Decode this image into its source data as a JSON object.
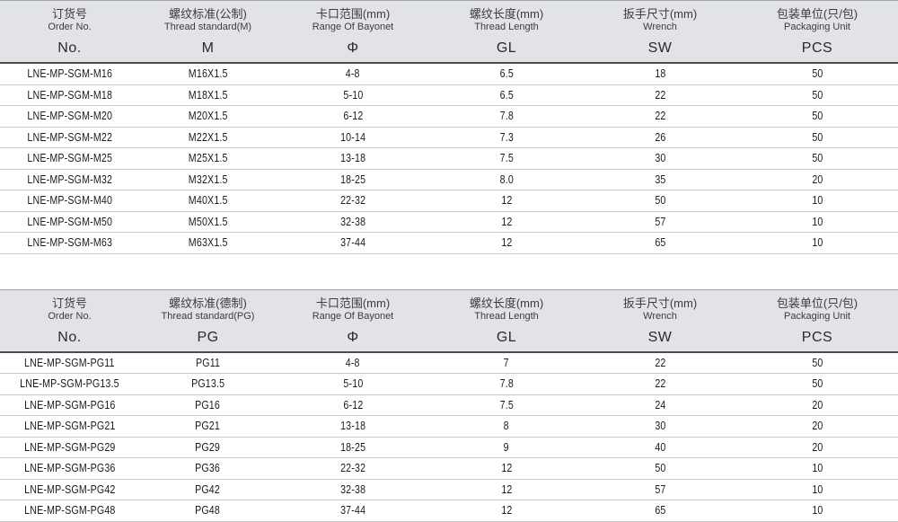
{
  "colors": {
    "header_bg": "#e1e3e6",
    "top_line": "#a0a4a8",
    "header_underline": "#4b4c4e",
    "row_line": "#c9cbcd",
    "text_dark": "#1c1c1c",
    "text_header": "#3c3c3c",
    "page_bg": "#ffffff"
  },
  "tables": [
    {
      "id": "metric",
      "columns": [
        {
          "zh": "订货号",
          "en": "Order No.",
          "abbr": "No."
        },
        {
          "zh": "螺纹标准(公制)",
          "en": "Thread standard(M)",
          "abbr": "M"
        },
        {
          "zh": "卡口范围(mm)",
          "en": "Range Of Bayonet",
          "abbr": "Φ"
        },
        {
          "zh": "螺纹长度(mm)",
          "en": "Thread Length",
          "abbr": "GL"
        },
        {
          "zh": "扳手尺寸(mm)",
          "en": "Wrench",
          "abbr": "SW"
        },
        {
          "zh": "包装单位(只/包)",
          "en": "Packaging Unit",
          "abbr": "PCS"
        }
      ],
      "rows": [
        [
          "LNE-MP-SGM-M16",
          "M16X1.5",
          "4-8",
          "6.5",
          "18",
          "50"
        ],
        [
          "LNE-MP-SGM-M18",
          "M18X1.5",
          "5-10",
          "6.5",
          "22",
          "50"
        ],
        [
          "LNE-MP-SGM-M20",
          "M20X1.5",
          "6-12",
          "7.8",
          "22",
          "50"
        ],
        [
          "LNE-MP-SGM-M22",
          "M22X1.5",
          "10-14",
          "7.3",
          "26",
          "50"
        ],
        [
          "LNE-MP-SGM-M25",
          "M25X1.5",
          "13-18",
          "7.5",
          "30",
          "50"
        ],
        [
          "LNE-MP-SGM-M32",
          "M32X1.5",
          "18-25",
          "8.0",
          "35",
          "20"
        ],
        [
          "LNE-MP-SGM-M40",
          "M40X1.5",
          "22-32",
          "12",
          "50",
          "10"
        ],
        [
          "LNE-MP-SGM-M50",
          "M50X1.5",
          "32-38",
          "12",
          "57",
          "10"
        ],
        [
          "LNE-MP-SGM-M63",
          "M63X1.5",
          "37-44",
          "12",
          "65",
          "10"
        ]
      ]
    },
    {
      "id": "pg",
      "columns": [
        {
          "zh": "订货号",
          "en": "Order No.",
          "abbr": "No."
        },
        {
          "zh": "螺纹标准(德制)",
          "en": "Thread standard(PG)",
          "abbr": "PG"
        },
        {
          "zh": "卡口范围(mm)",
          "en": "Range Of Bayonet",
          "abbr": "Φ"
        },
        {
          "zh": "螺纹长度(mm)",
          "en": "Thread Length",
          "abbr": "GL"
        },
        {
          "zh": "扳手尺寸(mm)",
          "en": "Wrench",
          "abbr": "SW"
        },
        {
          "zh": "包装单位(只/包)",
          "en": "Packaging Unit",
          "abbr": "PCS"
        }
      ],
      "rows": [
        [
          "LNE-MP-SGM-PG11",
          "PG11",
          "4-8",
          "7",
          "22",
          "50"
        ],
        [
          "LNE-MP-SGM-PG13.5",
          "PG13.5",
          "5-10",
          "7.8",
          "22",
          "50"
        ],
        [
          "LNE-MP-SGM-PG16",
          "PG16",
          "6-12",
          "7.5",
          "24",
          "20"
        ],
        [
          "LNE-MP-SGM-PG21",
          "PG21",
          "13-18",
          "8",
          "30",
          "20"
        ],
        [
          "LNE-MP-SGM-PG29",
          "PG29",
          "18-25",
          "9",
          "40",
          "20"
        ],
        [
          "LNE-MP-SGM-PG36",
          "PG36",
          "22-32",
          "12",
          "50",
          "10"
        ],
        [
          "LNE-MP-SGM-PG42",
          "PG42",
          "32-38",
          "12",
          "57",
          "10"
        ],
        [
          "LNE-MP-SGM-PG48",
          "PG48",
          "37-44",
          "12",
          "65",
          "10"
        ]
      ]
    }
  ]
}
